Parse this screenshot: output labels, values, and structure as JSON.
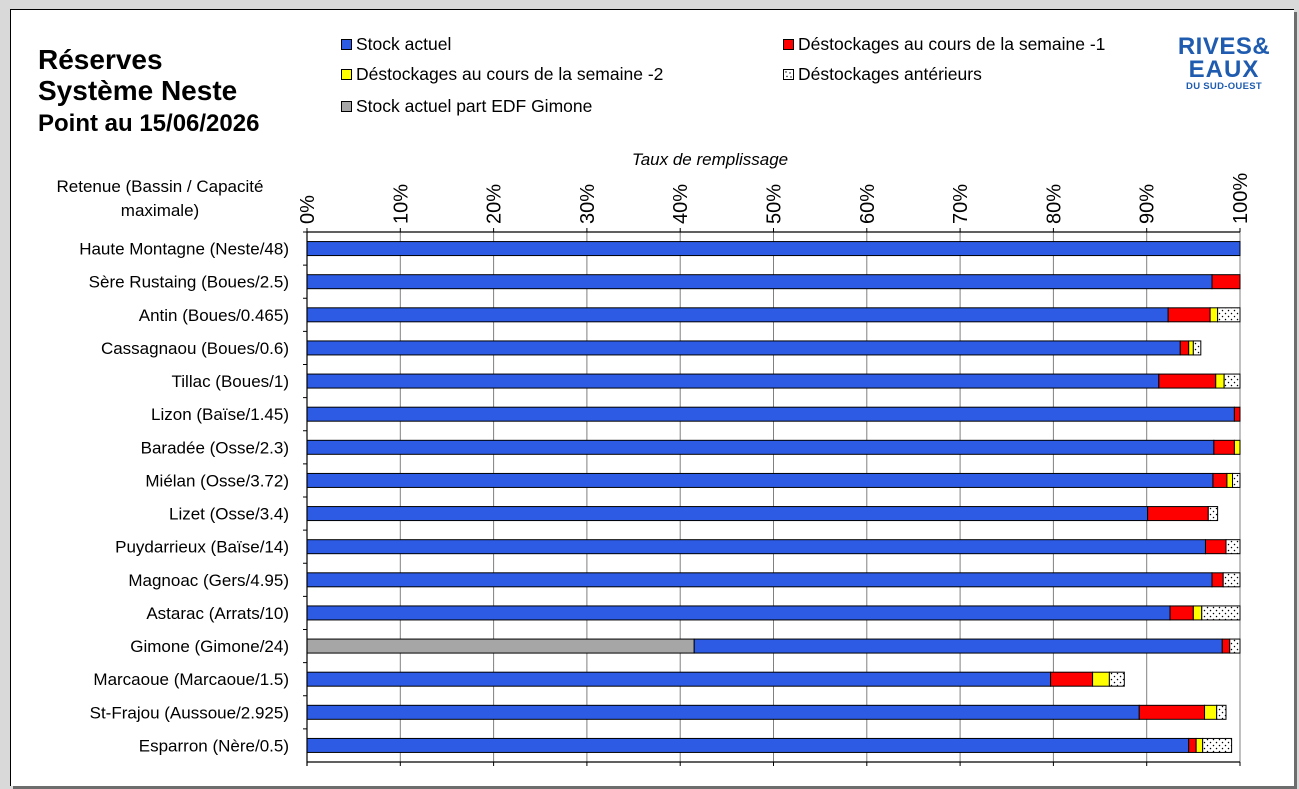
{
  "title": {
    "line1": "Réserves",
    "line2": "Système Neste",
    "line3": "Point au 15/06/2026"
  },
  "logo": {
    "line1": "RIVES&",
    "line2": "EAUX",
    "line3": "DU SUD-OUEST",
    "color": "#1f5cb0"
  },
  "chart_data": {
    "type": "bar",
    "orientation": "horizontal",
    "stacked": true,
    "xlabel": "Taux de remplissage",
    "ylabel": "Retenue (Bassin / Capacité maximale)",
    "xlim": [
      0,
      100
    ],
    "x_ticks": [
      "0%",
      "10%",
      "20%",
      "30%",
      "40%",
      "50%",
      "60%",
      "70%",
      "80%",
      "90%",
      "100%"
    ],
    "grid": "vertical",
    "legend_position": "top",
    "categories": [
      "Haute Montagne (Neste/48)",
      "Sère Rustaing (Boues/2.5)",
      "Antin (Boues/0.465)",
      "Cassagnaou (Boues/0.6)",
      "Tillac (Boues/1)",
      "Lizon (Baïse/1.45)",
      "Baradée (Osse/2.3)",
      "Miélan (Osse/3.72)",
      "Lizet (Osse/3.4)",
      "Puydarrieux (Baïse/14)",
      "Magnoac (Gers/4.95)",
      "Astarac (Arrats/10)",
      "Gimone (Gimone/24)",
      "Marcaoue (Marcaoue/1.5)",
      "St-Frajou (Aussoue/2.925)",
      "Esparron (Nère/0.5)"
    ],
    "series": [
      {
        "name": "Stock actuel part EDF Gimone",
        "color": "#a6a6a6",
        "pattern": "solid",
        "values": [
          0,
          0,
          0,
          0,
          0,
          0,
          0,
          0,
          0,
          0,
          0,
          0,
          41.5,
          0,
          0,
          0
        ]
      },
      {
        "name": "Stock actuel",
        "color": "#2d5be3",
        "pattern": "solid",
        "values": [
          100,
          97.0,
          92.3,
          93.6,
          91.3,
          99.4,
          97.2,
          97.1,
          90.1,
          96.3,
          97.0,
          92.5,
          56.6,
          79.7,
          89.2,
          94.5
        ]
      },
      {
        "name": "Déstockages au cours de la semaine -1",
        "color": "#ff0000",
        "pattern": "solid",
        "values": [
          0,
          3.0,
          4.5,
          0.9,
          6.1,
          0.6,
          2.2,
          1.5,
          6.5,
          2.2,
          1.2,
          2.5,
          0.8,
          4.5,
          7.0,
          0.8
        ]
      },
      {
        "name": "Déstockages au cours de la semaine -2",
        "color": "#ffff00",
        "pattern": "solid",
        "values": [
          0,
          0,
          0.8,
          0.5,
          0.9,
          0,
          0.6,
          0.6,
          0,
          0,
          0,
          0.9,
          0,
          1.8,
          1.3,
          0.7
        ]
      },
      {
        "name": "Déstockages antérieurs",
        "color": "#ffffff",
        "pattern": "dots",
        "values": [
          0,
          0,
          2.4,
          0.8,
          1.7,
          0,
          0,
          0.8,
          1.0,
          1.5,
          1.8,
          4.1,
          1.1,
          1.6,
          1.0,
          3.1
        ]
      }
    ]
  },
  "legend": [
    {
      "label": "Stock actuel",
      "color": "#2d5be3",
      "pattern": "solid"
    },
    {
      "label": "Déstockages au cours de la semaine -1",
      "color": "#ff0000",
      "pattern": "solid"
    },
    {
      "label": "Déstockages au cours de la semaine -2",
      "color": "#ffff00",
      "pattern": "solid"
    },
    {
      "label": "Déstockages antérieurs",
      "color": "#ffffff",
      "pattern": "dots"
    },
    {
      "label": "Stock actuel part EDF Gimone",
      "color": "#a6a6a6",
      "pattern": "solid"
    }
  ]
}
